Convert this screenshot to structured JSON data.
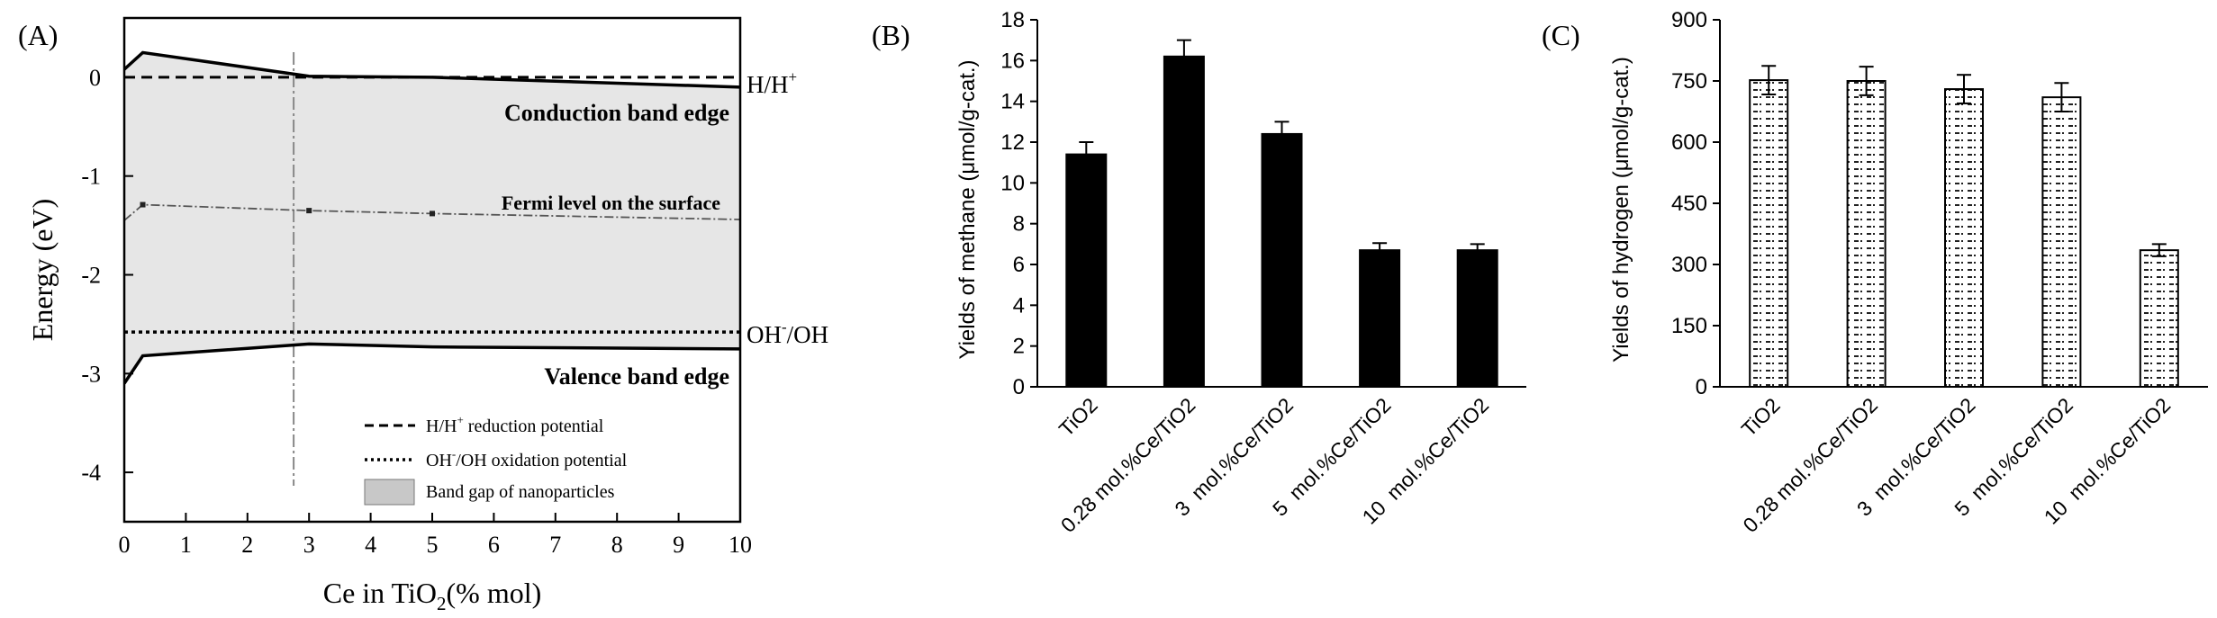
{
  "colors": {
    "ink": "#000000",
    "band_fill": "#e6e6e6",
    "fermi_line": "#555555",
    "bar_fill": "#000000",
    "hatch_bg": "#ffffff"
  },
  "chart_data": [
    {
      "panel_label": "(A)",
      "type": "line",
      "title": "",
      "xlabel_main": "Ce in TiO",
      "xlabel_sub": "2",
      "xlabel_tail": "(% mol)",
      "ylabel": "Energy (eV)",
      "xlim": [
        0,
        10
      ],
      "ylim": [
        -4.5,
        0.6
      ],
      "xticks": [
        "0",
        "1",
        "2",
        "3",
        "4",
        "5",
        "6",
        "7",
        "8",
        "9",
        "10"
      ],
      "yticks": [
        "0",
        "-1",
        "-2",
        "-3",
        "-4"
      ],
      "series": [
        {
          "name": "Conduction band edge",
          "x": [
            0,
            0.3,
            3,
            5,
            10
          ],
          "values": [
            0.08,
            0.25,
            0.01,
            0.0,
            -0.1
          ]
        },
        {
          "name": "Fermi level on the surface",
          "x": [
            0,
            0.3,
            3,
            5,
            10
          ],
          "values": [
            -1.45,
            -1.29,
            -1.35,
            -1.38,
            -1.44
          ]
        },
        {
          "name": "Valence band edge",
          "x": [
            0,
            0.3,
            3,
            5,
            10
          ],
          "values": [
            -3.1,
            -2.82,
            -2.7,
            -2.73,
            -2.75
          ]
        }
      ],
      "reference_lines": [
        {
          "name": "H/H+ reduction potential",
          "y": 0.0,
          "style": "dashed"
        },
        {
          "name": "OH-/OH oxidation potential",
          "y": -2.58,
          "style": "dotted"
        }
      ],
      "vertical_marker_x": 2.75,
      "annotations": {
        "hh_base": "H/H",
        "hh_sup": "+",
        "ohoh_base": "OH",
        "ohoh_sup": "-",
        "ohoh_tail": "/OH",
        "conduction": "Conduction band edge",
        "fermi": "Fermi level on the surface",
        "valence": "Valence band edge"
      },
      "legend": {
        "placement": "bottom-right",
        "item1_base": "H/H",
        "item1_sup": "+",
        "item1_tail": " reduction potential",
        "item2_base": "OH",
        "item2_sup": "-",
        "item2_tail": "/OH oxidation potential",
        "item3": "Band gap of nanoparticles"
      }
    },
    {
      "panel_label": "(B)",
      "type": "bar",
      "title": "",
      "xlabel": "",
      "ylabel": "Yields of methane (μmol/g-cat.)",
      "categories": [
        "TiO2",
        "0.28 mol.%Ce/TiO2",
        "3  mol.%Ce/TiO2",
        "5  mol.%Ce/TiO2",
        "10  mol.%Ce/TiO2"
      ],
      "values": [
        11.4,
        16.2,
        12.4,
        6.7,
        6.7
      ],
      "errors": [
        0.6,
        0.8,
        0.6,
        0.35,
        0.3
      ],
      "ylim": [
        0,
        18
      ],
      "yticks": [
        "0",
        "2",
        "4",
        "6",
        "8",
        "10",
        "12",
        "14",
        "16",
        "18"
      ]
    },
    {
      "panel_label": "(C)",
      "type": "bar",
      "title": "",
      "xlabel": "",
      "ylabel": "Yields of hydrogen (μmol/g-cat.)",
      "categories": [
        "TiO2",
        "0.28 mol.%Ce/TiO2",
        "3  mol.%Ce/TiO2",
        "5  mol.%Ce/TiO2",
        "10  mol.%Ce/TiO2"
      ],
      "values": [
        752,
        750,
        730,
        710,
        335
      ],
      "errors": [
        35,
        35,
        35,
        35,
        15
      ],
      "ylim": [
        0,
        900
      ],
      "yticks": [
        "0",
        "150",
        "300",
        "450",
        "600",
        "750",
        "900"
      ]
    }
  ]
}
